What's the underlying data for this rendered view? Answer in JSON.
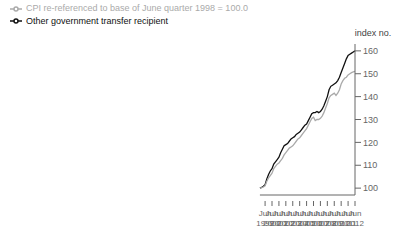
{
  "chart_data": {
    "type": "line",
    "ylabel": "index no.",
    "categories": [
      null,
      null,
      null,
      "Jun 1999",
      null,
      null,
      null,
      "Jun 2000",
      null,
      null,
      null,
      "Jun 2001",
      null,
      null,
      null,
      "Jun 2002",
      null,
      null,
      null,
      "Jun 2003",
      null,
      null,
      null,
      "Jun 2004",
      null,
      null,
      null,
      "Jun 2005",
      null,
      null,
      null,
      "Jun 2006",
      null,
      null,
      null,
      "Jun 2007",
      null,
      null,
      null,
      "Jun 2008",
      null,
      null,
      null,
      "Jun 2009",
      null,
      null,
      null,
      "Jun 2010",
      null,
      null,
      null,
      "Jun 2011",
      null,
      null,
      null,
      "Jun 2012"
    ],
    "series": [
      {
        "name": "Other government transfer recipient",
        "color": "#111111",
        "values": [
          100.0,
          100.3,
          100.8,
          101.5,
          104.0,
          106.0,
          107.5,
          108.5,
          110.5,
          111.5,
          112.5,
          113.5,
          115.5,
          117.0,
          118.5,
          119.0,
          119.5,
          120.5,
          121.5,
          122.0,
          122.5,
          123.5,
          124.0,
          124.5,
          125.5,
          126.5,
          127.5,
          128.0,
          129.5,
          131.0,
          132.5,
          133.0,
          133.0,
          133.5,
          133.0,
          133.5,
          134.5,
          136.0,
          138.0,
          140.0,
          143.0,
          144.5,
          145.0,
          145.5,
          146.0,
          147.0,
          148.5,
          150.5,
          152.5,
          154.5,
          156.5,
          158.0,
          158.5,
          159.0,
          159.5,
          160.0
        ]
      },
      {
        "name": "CPI re-referenced to base of June quarter 1998 = 100.0",
        "color": "#aaaaaa",
        "values": [
          100.0,
          100.2,
          100.5,
          101.0,
          103.0,
          104.5,
          105.5,
          106.5,
          108.5,
          109.5,
          110.5,
          111.0,
          112.0,
          113.0,
          114.5,
          115.5,
          116.5,
          117.5,
          118.0,
          118.5,
          119.5,
          120.5,
          121.5,
          122.0,
          123.0,
          124.0,
          125.0,
          126.0,
          127.5,
          129.0,
          130.5,
          131.0,
          129.5,
          130.0,
          130.0,
          130.5,
          131.5,
          133.0,
          135.0,
          137.0,
          139.5,
          140.5,
          141.0,
          141.5,
          140.5,
          141.5,
          143.0,
          145.5,
          147.0,
          148.0,
          148.5,
          149.5,
          150.0,
          150.5,
          150.8,
          151.0
        ]
      }
    ],
    "ylim": [
      97,
      163
    ],
    "yticks": [
      100,
      110,
      120,
      130,
      140,
      150,
      160
    ],
    "legend": "upper left"
  }
}
